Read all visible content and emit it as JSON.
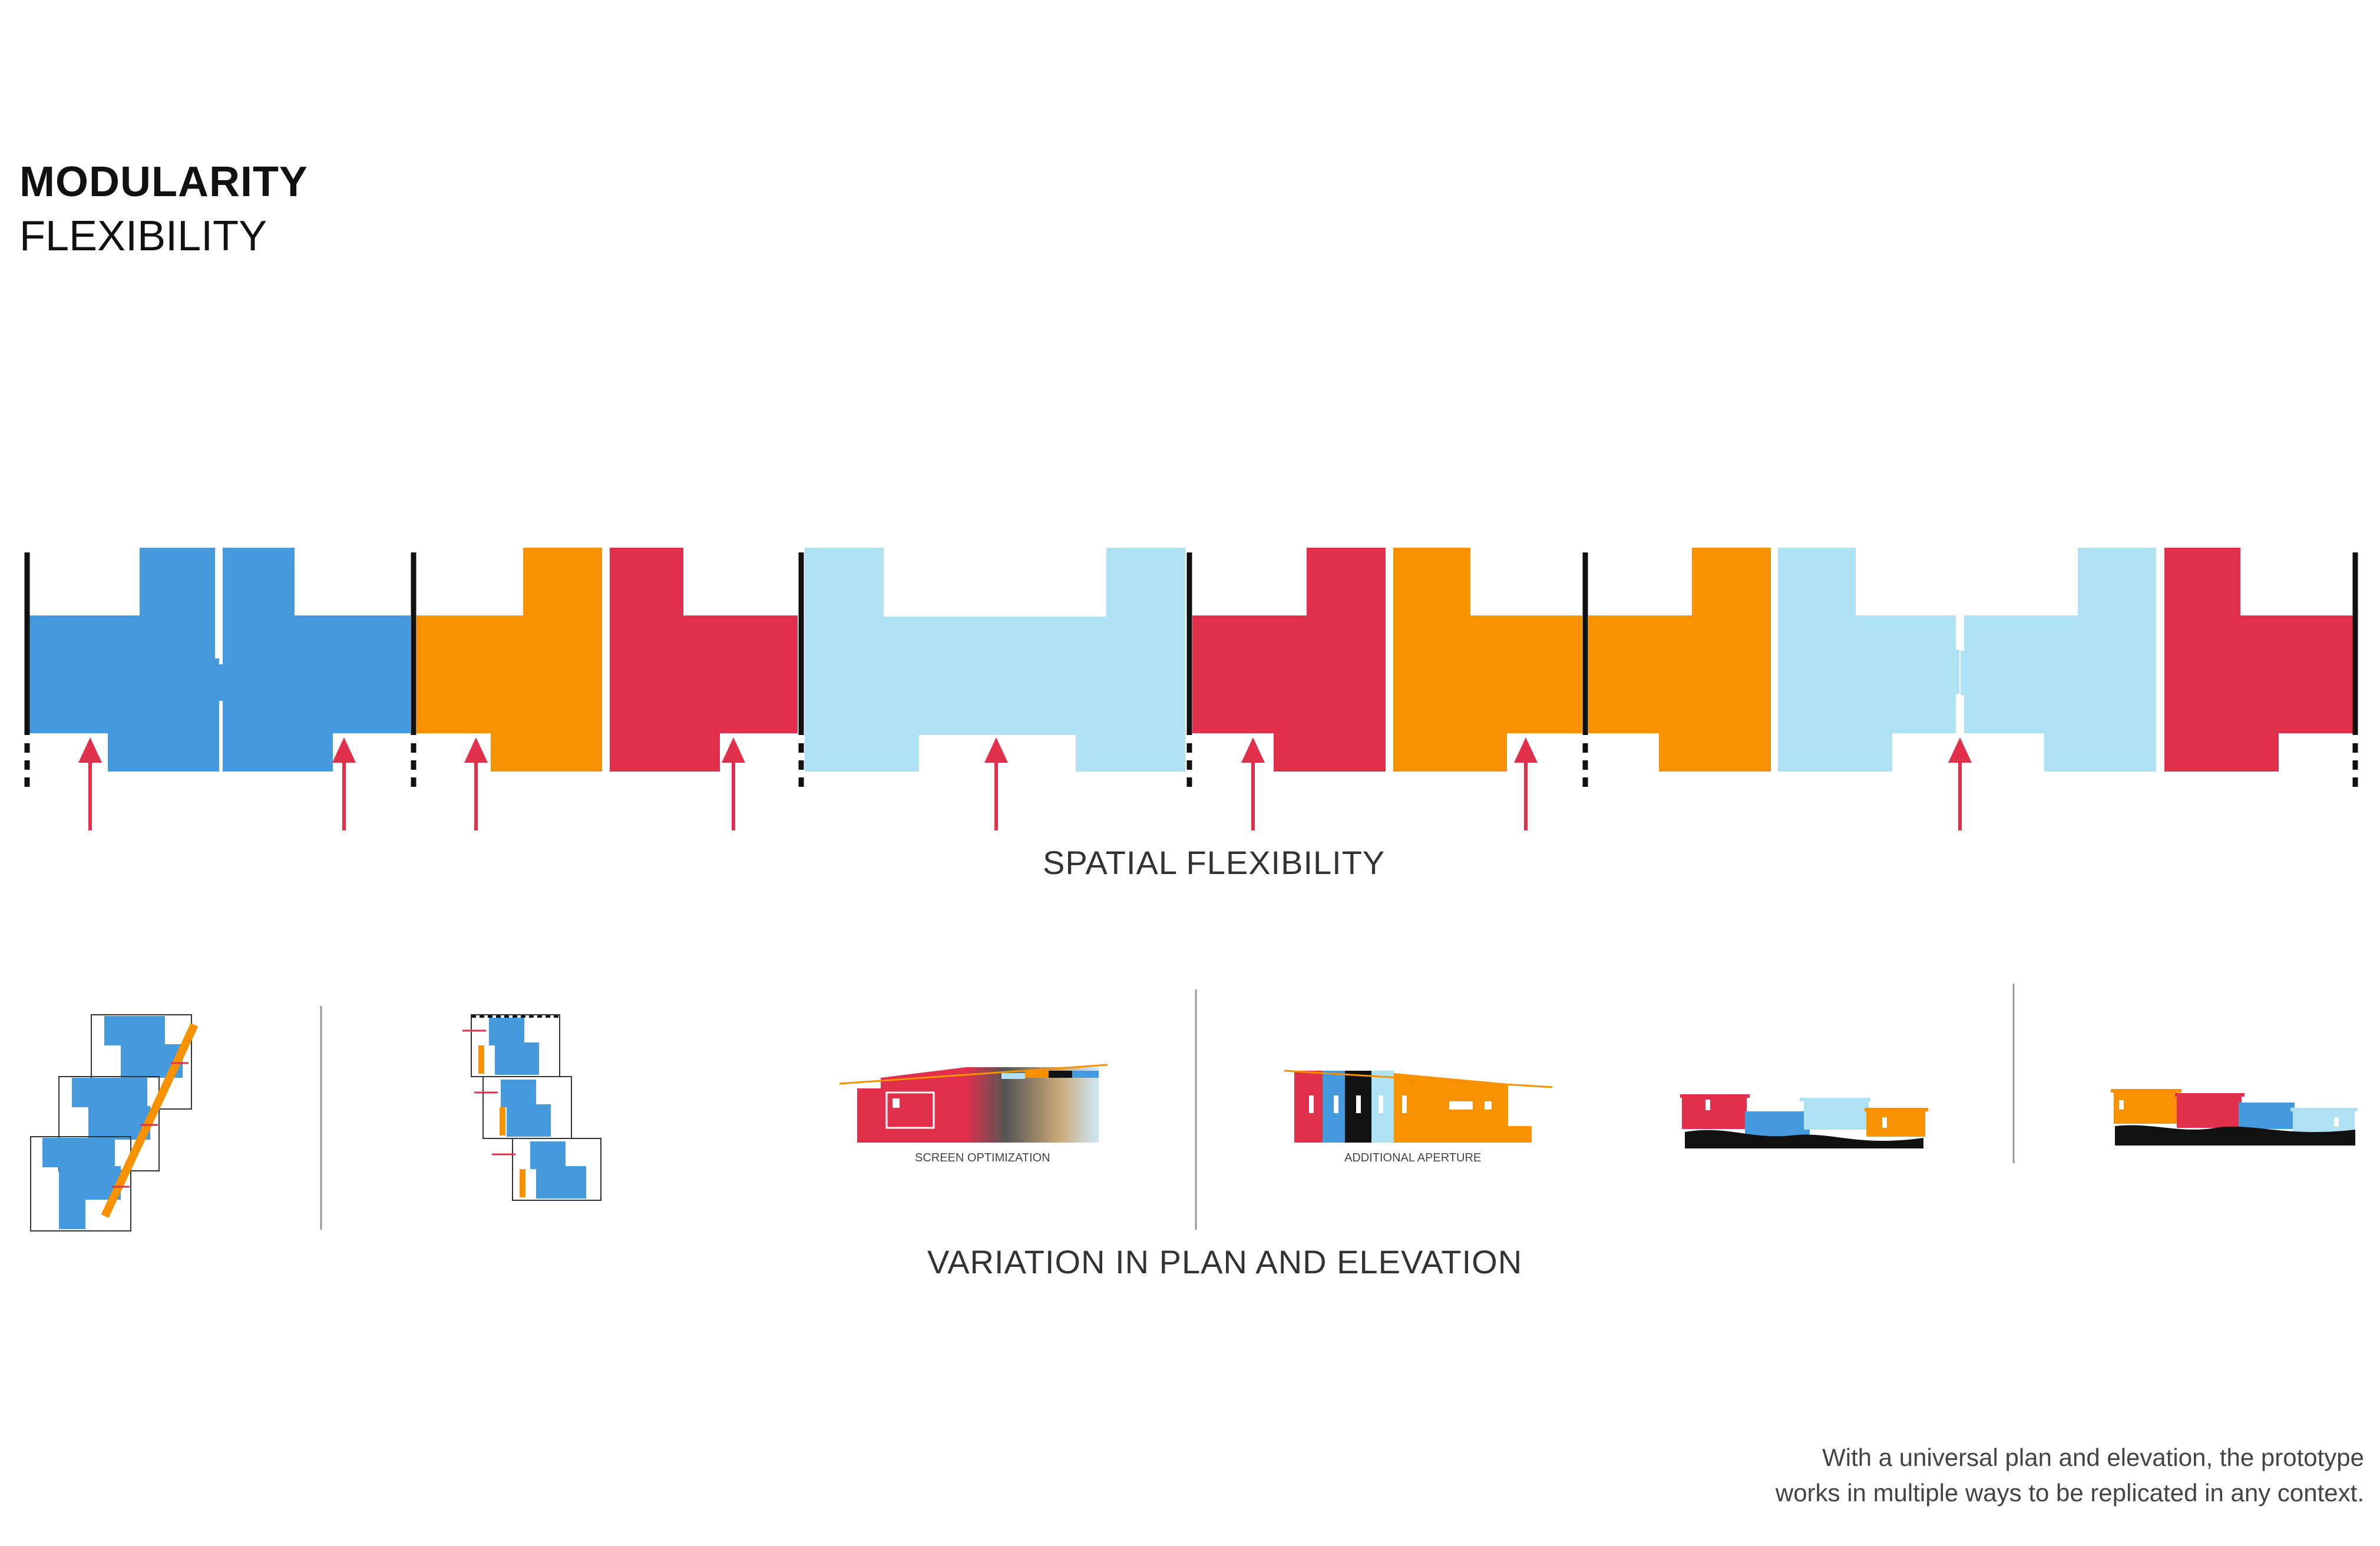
{
  "title": {
    "main": "MODULARITY",
    "sub": "FLEXIBILITY"
  },
  "captions": {
    "spatial": "SPATIAL FLEXIBILITY",
    "variation": "VARIATION IN PLAN AND ELEVATION"
  },
  "elevation_labels": {
    "screen": "SCREEN OPTIMIZATION",
    "aperture": "ADDITIONAL APERTURE"
  },
  "footer": {
    "line1": "With a universal plan and elevation, the prototype",
    "line2": "works in multiple ways to be replicated in any context."
  },
  "colors": {
    "blue": "#4599DD",
    "orange": "#F79100",
    "red": "#E0304B",
    "light_blue": "#AEE2F3",
    "arrow": "#E0304B",
    "black": "#111111"
  }
}
